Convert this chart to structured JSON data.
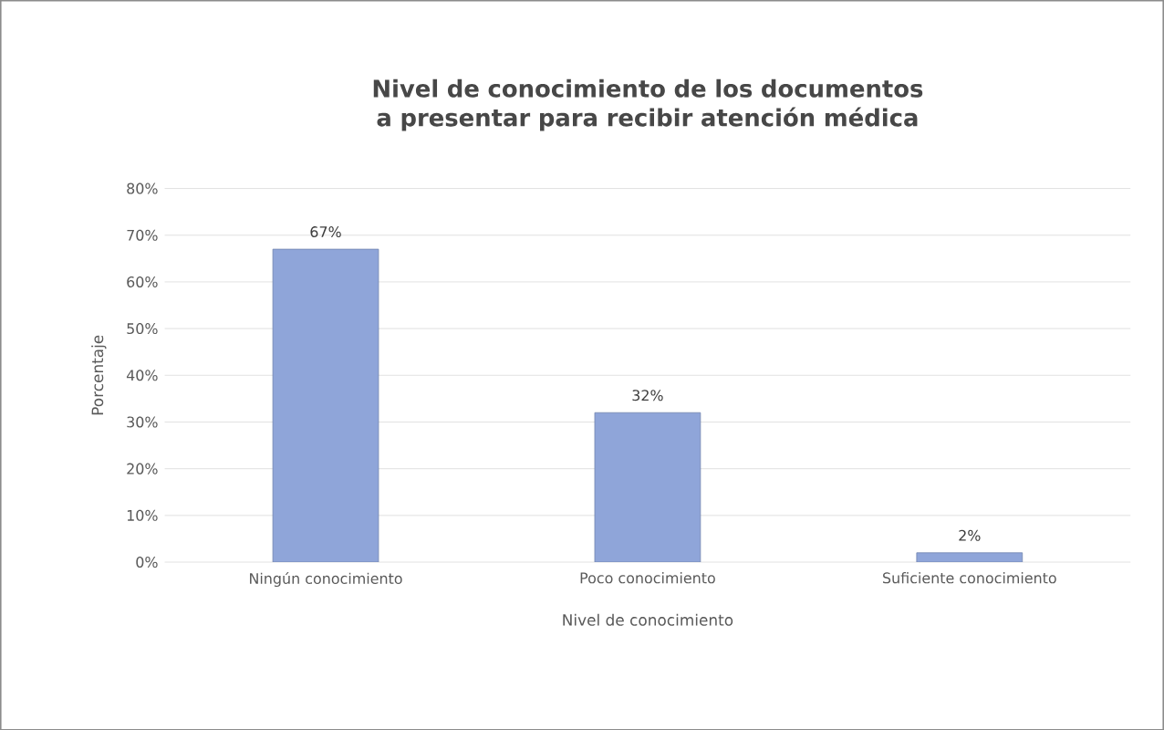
{
  "chart_data": {
    "type": "bar",
    "title": "Nivel de conocimiento de los documentos a presentar para recibir atención médica",
    "categories": [
      "Ningún conocimiento",
      "Poco conocimiento",
      "Suficiente conocimiento"
    ],
    "values": [
      67,
      32,
      2
    ],
    "value_labels": [
      "67%",
      "32%",
      "2%"
    ],
    "color": "#8fa5d9",
    "xlabel": "Nivel de conocimiento",
    "ylabel": "Porcentaje",
    "ylim": [
      0,
      80
    ],
    "yticks": [
      {
        "value": 0,
        "label": "0%"
      },
      {
        "value": 10,
        "label": "10%"
      },
      {
        "value": 20,
        "label": "20%"
      },
      {
        "value": 30,
        "label": "30%"
      },
      {
        "value": 40,
        "label": "40%"
      },
      {
        "value": 50,
        "label": "50%"
      },
      {
        "value": 60,
        "label": "60%"
      },
      {
        "value": 70,
        "label": "70%"
      },
      {
        "value": 80,
        "label": "80%"
      }
    ],
    "grid": "y"
  }
}
